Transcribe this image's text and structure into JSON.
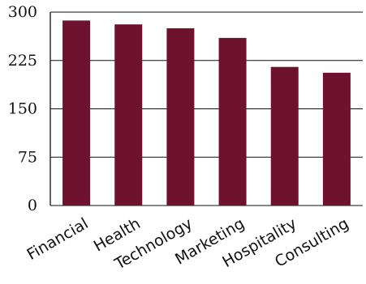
{
  "chart_data": {
    "type": "bar",
    "categories": [
      "Financial",
      "Health",
      "Technology",
      "Marketing",
      "Hospitality",
      "Consulting"
    ],
    "values": [
      287,
      281,
      275,
      260,
      215,
      206
    ],
    "ylim": [
      0,
      300
    ],
    "yticks": [
      0,
      75,
      150,
      225,
      300
    ],
    "grid": true,
    "bar_color": "#6e1230",
    "title": "",
    "xlabel": "",
    "ylabel": ""
  }
}
